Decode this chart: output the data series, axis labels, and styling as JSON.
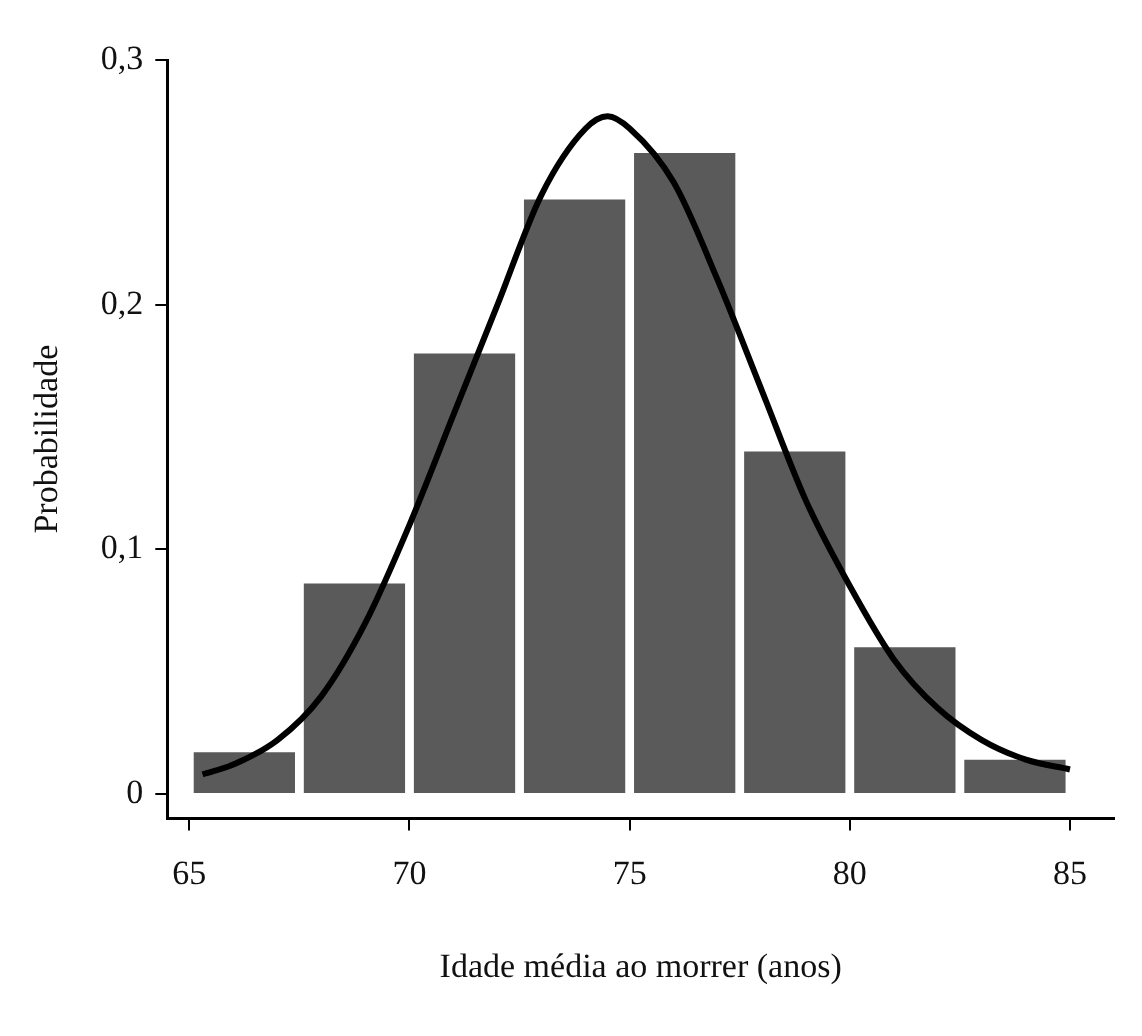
{
  "chart_data": {
    "type": "histogram",
    "xlabel": "Idade média ao morrer (anos)",
    "ylabel": "Probabilidade",
    "bins": [
      65,
      67.5,
      70,
      72.5,
      75,
      77.5,
      80,
      82.5,
      85
    ],
    "series": [
      {
        "color": "#5a5a5a",
        "values": [
          0.017,
          0.086,
          0.18,
          0.243,
          0.262,
          0.14,
          0.06,
          0.014
        ]
      },
      {
        "type": "line",
        "color": "#000000",
        "x": [
          65.3,
          66,
          67,
          68,
          69,
          70,
          71,
          72,
          73,
          74,
          74.5,
          75,
          76,
          77,
          78,
          79,
          80,
          81,
          82,
          83,
          84,
          85
        ],
        "values": [
          0.008,
          0.012,
          0.022,
          0.04,
          0.07,
          0.11,
          0.155,
          0.2,
          0.245,
          0.272,
          0.277,
          0.272,
          0.25,
          0.21,
          0.165,
          0.12,
          0.085,
          0.055,
          0.035,
          0.022,
          0.014,
          0.01
        ]
      }
    ],
    "xlim": [
      64.5,
      86
    ],
    "xticks": [
      65,
      70,
      75,
      80,
      85
    ],
    "ylim": [
      -0.01,
      0.3
    ],
    "yticks": [
      {
        "value": 0,
        "label": "0"
      },
      {
        "value": 0.1,
        "label": "0,1"
      },
      {
        "value": 0.2,
        "label": "0,2"
      },
      {
        "value": 0.3,
        "label": "0,3"
      }
    ],
    "grid": false,
    "legend": false,
    "marker": "none"
  }
}
